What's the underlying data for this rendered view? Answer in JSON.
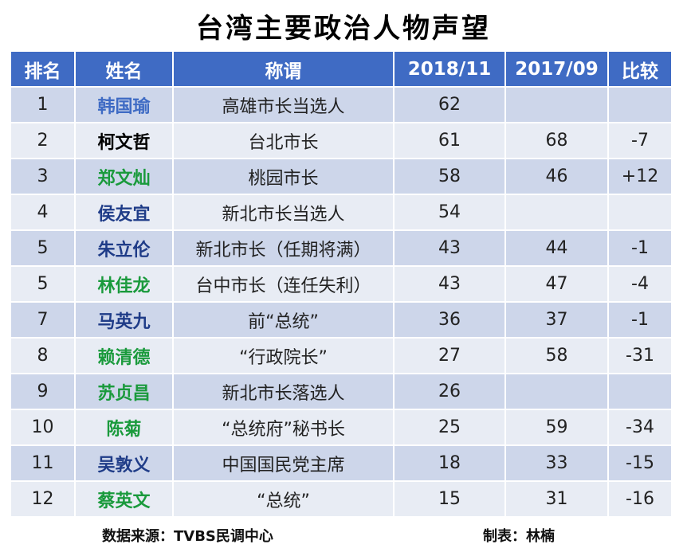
{
  "title": "台湾主要政治人物声望",
  "colors": {
    "header_bg": "#3f6bc4",
    "row_odd": "#cdd6ea",
    "row_even": "#e8ecf4",
    "blue_name": "#1f3c88",
    "green_name": "#1a9a3c",
    "black_name": "#000000",
    "steel_name": "#3f6bc4"
  },
  "headers": [
    "排名",
    "姓名",
    "称谓",
    "2018/11",
    "2017/09",
    "比较"
  ],
  "rows": [
    {
      "rank": "1",
      "name": "韩国瑜",
      "name_color": "#3f6bc4",
      "title": "高雄市长当选人",
      "v2018": "62",
      "v2017": "",
      "cmp": ""
    },
    {
      "rank": "2",
      "name": "柯文哲",
      "name_color": "#000000",
      "title": "台北市长",
      "v2018": "61",
      "v2017": "68",
      "cmp": "-7"
    },
    {
      "rank": "3",
      "name": "郑文灿",
      "name_color": "#1a9a3c",
      "title": "桃园市长",
      "v2018": "58",
      "v2017": "46",
      "cmp": "+12"
    },
    {
      "rank": "4",
      "name": "侯友宜",
      "name_color": "#1f3c88",
      "title": "新北市长当选人",
      "v2018": "54",
      "v2017": "",
      "cmp": ""
    },
    {
      "rank": "5",
      "name": "朱立伦",
      "name_color": "#1f3c88",
      "title": "新北市长（任期将满）",
      "v2018": "43",
      "v2017": "44",
      "cmp": "-1"
    },
    {
      "rank": "5",
      "name": "林佳龙",
      "name_color": "#1a9a3c",
      "title": "台中市长（连任失利）",
      "v2018": "43",
      "v2017": "47",
      "cmp": "-4"
    },
    {
      "rank": "7",
      "name": "马英九",
      "name_color": "#1f3c88",
      "title": "前“总统”",
      "v2018": "36",
      "v2017": "37",
      "cmp": "-1"
    },
    {
      "rank": "8",
      "name": "赖清德",
      "name_color": "#1a9a3c",
      "title": "“行政院长”",
      "v2018": "27",
      "v2017": "58",
      "cmp": "-31"
    },
    {
      "rank": "9",
      "name": "苏贞昌",
      "name_color": "#1a9a3c",
      "title": "新北市长落选人",
      "v2018": "26",
      "v2017": "",
      "cmp": ""
    },
    {
      "rank": "10",
      "name": "陈菊",
      "name_color": "#1a9a3c",
      "title": "“总统府”秘书长",
      "v2018": "25",
      "v2017": "59",
      "cmp": "-34"
    },
    {
      "rank": "11",
      "name": "吴敦义",
      "name_color": "#1f3c88",
      "title": "中国国民党主席",
      "v2018": "18",
      "v2017": "33",
      "cmp": "-15"
    },
    {
      "rank": "12",
      "name": "蔡英文",
      "name_color": "#1a9a3c",
      "title": "“总统”",
      "v2018": "15",
      "v2017": "31",
      "cmp": "-16"
    }
  ],
  "footer": {
    "source": "数据来源：TVBS民调中心",
    "author": "制表：林楠"
  }
}
